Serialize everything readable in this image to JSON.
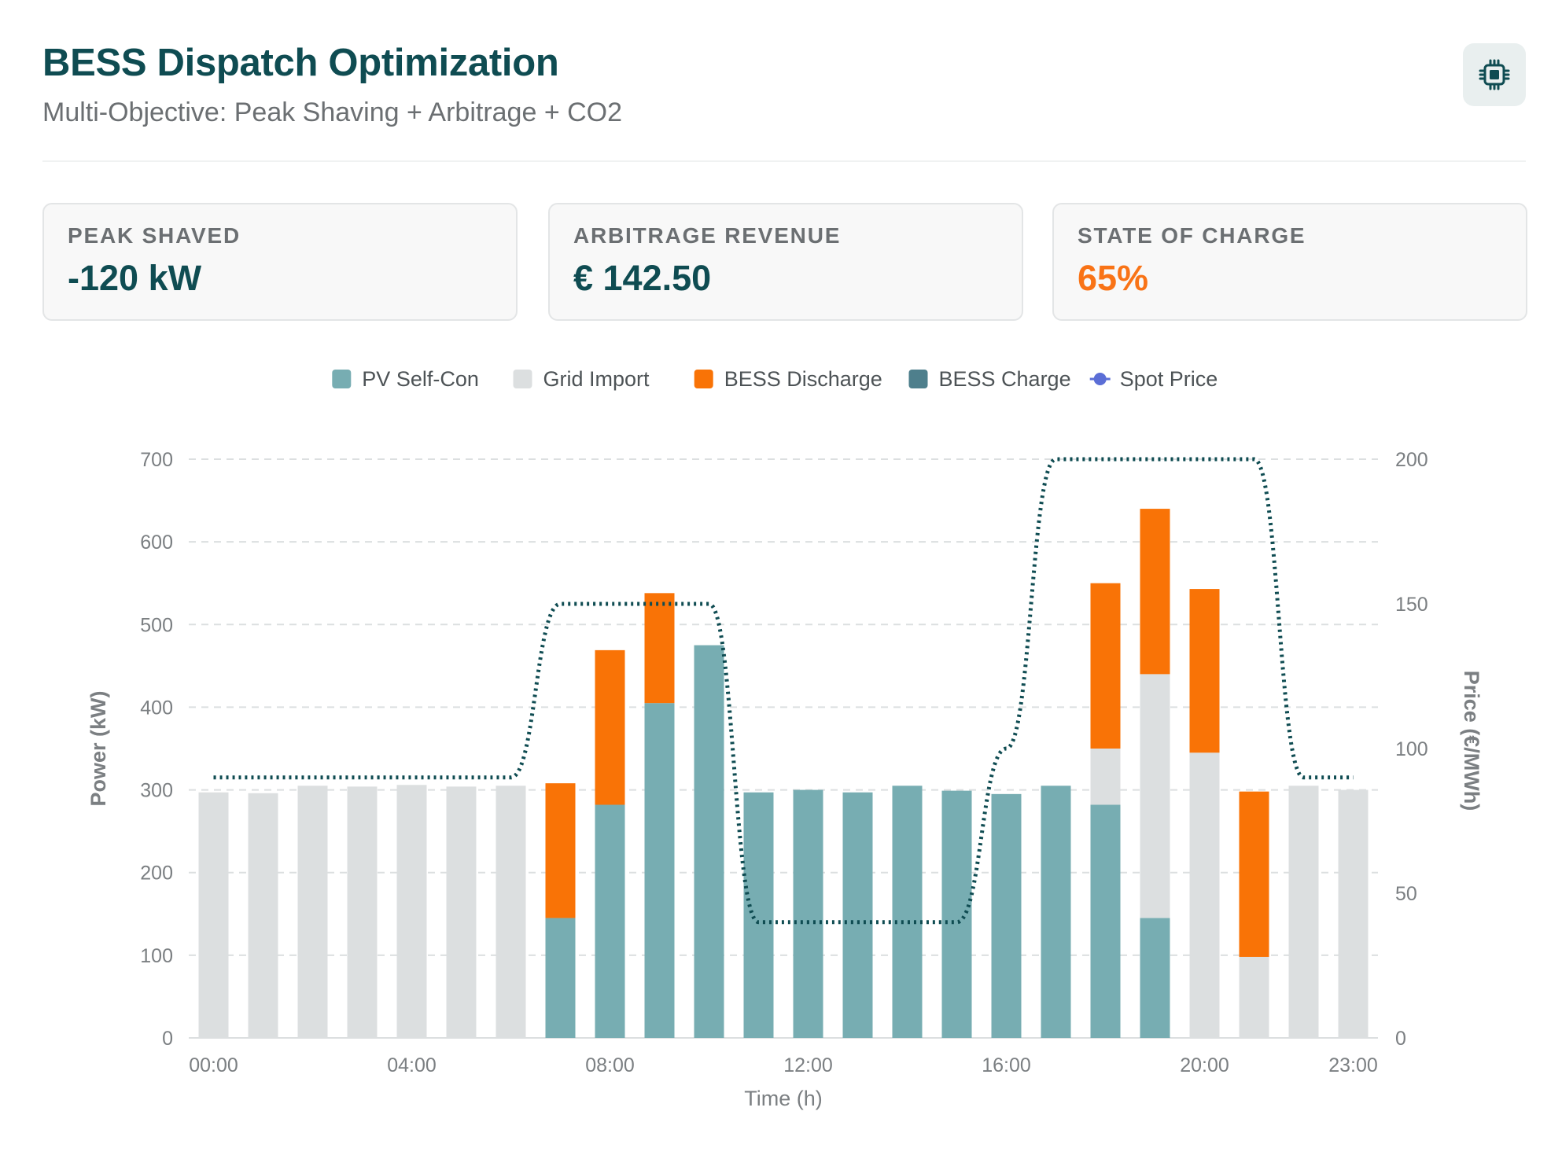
{
  "header": {
    "title": "BESS Dispatch Optimization",
    "subtitle": "Multi-Objective: Peak Shaving + Arbitrage + CO2",
    "icon": "cpu-chip-icon"
  },
  "kpis": [
    {
      "label": "PEAK SHAVED",
      "value": "-120 kW",
      "color": "#0f4c52"
    },
    {
      "label": "ARBITRAGE REVENUE",
      "value": "€ 142.50",
      "color": "#0f4c52"
    },
    {
      "label": "STATE OF CHARGE",
      "value": "65%",
      "color": "#f97316"
    }
  ],
  "chart_data": {
    "type": "bar",
    "stacked": true,
    "categories": [
      "00:00",
      "01:00",
      "02:00",
      "03:00",
      "04:00",
      "05:00",
      "06:00",
      "07:00",
      "08:00",
      "09:00",
      "10:00",
      "11:00",
      "12:00",
      "13:00",
      "14:00",
      "15:00",
      "16:00",
      "17:00",
      "18:00",
      "19:00",
      "20:00",
      "21:00",
      "22:00",
      "23:00"
    ],
    "x_tick_labels": [
      "00:00",
      "04:00",
      "08:00",
      "12:00",
      "16:00",
      "20:00",
      "23:00"
    ],
    "xlabel": "Time (h)",
    "ylabel": "Power (kW)",
    "y2label": "Price (€/MWh)",
    "ylim": [
      0,
      700
    ],
    "y_ticks": [
      0,
      100,
      200,
      300,
      400,
      500,
      600,
      700
    ],
    "y2lim": [
      0,
      200
    ],
    "y2_ticks": [
      0,
      50,
      100,
      150,
      200
    ],
    "grid": true,
    "legend_position": "top-center",
    "series": [
      {
        "name": "PV Self-Con",
        "color": "#77adb2",
        "axis": "left",
        "values": [
          0,
          0,
          0,
          0,
          0,
          0,
          0,
          145,
          282,
          405,
          475,
          297,
          300,
          297,
          305,
          299,
          295,
          305,
          282,
          145,
          0,
          0,
          0,
          0
        ]
      },
      {
        "name": "Grid Import",
        "color": "#dcdfe0",
        "axis": "left",
        "values": [
          297,
          296,
          305,
          304,
          306,
          304,
          305,
          0,
          0,
          0,
          0,
          0,
          0,
          0,
          0,
          0,
          0,
          0,
          68,
          295,
          345,
          98,
          305,
          300
        ]
      },
      {
        "name": "BESS Discharge",
        "color": "#f97306",
        "axis": "left",
        "values": [
          0,
          0,
          0,
          0,
          0,
          0,
          0,
          163,
          187,
          133,
          0,
          0,
          0,
          0,
          0,
          0,
          0,
          0,
          200,
          200,
          198,
          200,
          0,
          0
        ]
      },
      {
        "name": "BESS Charge",
        "color": "#4e7f8c",
        "axis": "left",
        "values": [
          0,
          0,
          0,
          0,
          0,
          0,
          0,
          0,
          0,
          0,
          0,
          0,
          0,
          0,
          0,
          0,
          0,
          0,
          0,
          0,
          0,
          0,
          0,
          0
        ]
      },
      {
        "name": "Spot Price",
        "color": "#5b6ed6",
        "line_color": "#0f4c52",
        "type": "line",
        "style": "dotted",
        "axis": "right",
        "values": [
          90,
          90,
          90,
          90,
          90,
          90,
          90,
          150,
          150,
          150,
          150,
          40,
          40,
          40,
          40,
          40,
          100,
          200,
          200,
          200,
          200,
          200,
          90,
          90
        ]
      }
    ]
  }
}
